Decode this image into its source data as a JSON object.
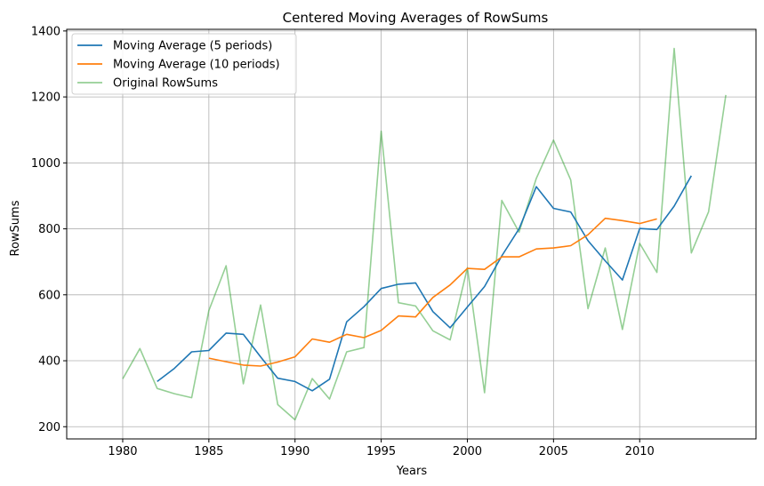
{
  "chart_data": {
    "type": "line",
    "title": "Centered Moving Averages of RowSums",
    "xlabel": "Years",
    "ylabel": "RowSums",
    "xlim": [
      1976.75,
      2016.75
    ],
    "ylim": [
      163,
      1405
    ],
    "xticks": [
      1980,
      1985,
      1990,
      1995,
      2000,
      2005,
      2010
    ],
    "yticks": [
      200,
      400,
      600,
      800,
      1000,
      1200,
      1400
    ],
    "grid": true,
    "legend_position": "top-left",
    "series": [
      {
        "name": "Moving Average (5 periods)",
        "color": "#1f77b4",
        "opacity": 1,
        "x": [
          1982,
          1983,
          1984,
          1985,
          1986,
          1987,
          1988,
          1989,
          1990,
          1991,
          1992,
          1993,
          1994,
          1995,
          1996,
          1997,
          1998,
          1999,
          2000,
          2001,
          2002,
          2003,
          2004,
          2005,
          2006,
          2007,
          2008,
          2009,
          2010,
          2011,
          2012,
          2013
        ],
        "y": [
          337,
          377,
          427,
          431,
          484,
          480,
          412,
          347,
          337,
          309,
          344,
          518,
          564,
          619,
          632,
          636,
          549,
          500,
          563,
          625,
          718,
          800,
          928,
          862,
          851,
          764,
          703,
          645,
          801,
          798,
          869,
          961
        ]
      },
      {
        "name": "Moving Average (10 periods)",
        "color": "#ff7f0e",
        "opacity": 1,
        "x": [
          1985,
          1986,
          1987,
          1988,
          1989,
          1990,
          1991,
          1992,
          1993,
          1994,
          1995,
          1996,
          1997,
          1998,
          1999,
          2000,
          2001,
          2002,
          2003,
          2004,
          2005,
          2006,
          2007,
          2008,
          2009,
          2010,
          2011
        ],
        "y": [
          408,
          397,
          387,
          384,
          396,
          412,
          466,
          456,
          480,
          470,
          492,
          536,
          533,
          592,
          630,
          680,
          677,
          715,
          715,
          739,
          742,
          749,
          782,
          832,
          825,
          816,
          830
        ]
      },
      {
        "name": "Original RowSums",
        "color": "#2ca02c",
        "opacity": 0.5,
        "x": [
          1980,
          1981,
          1982,
          1983,
          1984,
          1985,
          1986,
          1987,
          1988,
          1989,
          1990,
          1991,
          1992,
          1993,
          1994,
          1995,
          1996,
          1997,
          1998,
          1999,
          2000,
          2001,
          2002,
          2003,
          2004,
          2005,
          2006,
          2007,
          2008,
          2009,
          2010,
          2011,
          2012,
          2013,
          2014,
          2015
        ],
        "y": [
          345,
          437,
          316,
          300,
          288,
          552,
          688,
          330,
          569,
          267,
          221,
          346,
          284,
          427,
          440,
          1096,
          576,
          566,
          491,
          463,
          682,
          303,
          886,
          790,
          953,
          1069,
          948,
          558,
          742,
          495,
          756,
          668,
          1347,
          727,
          852,
          1206
        ]
      }
    ]
  }
}
